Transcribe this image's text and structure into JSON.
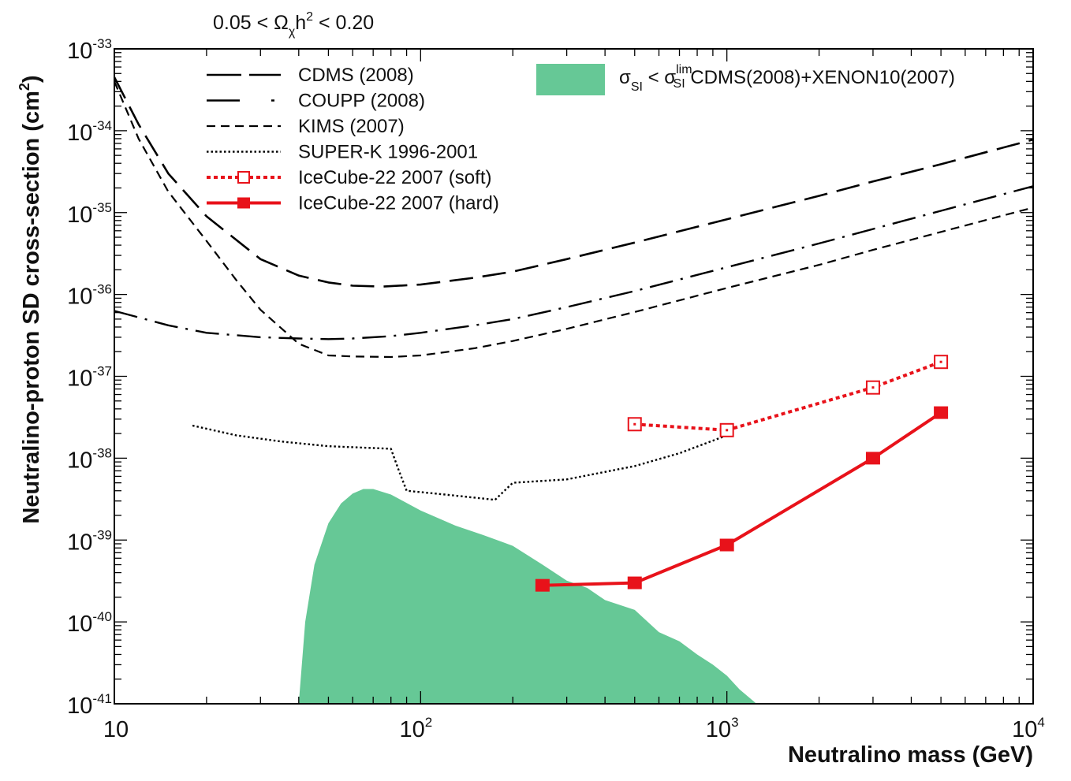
{
  "chart_data": {
    "type": "line",
    "annotation": "0.05 < Ω_χ h^2 < 0.20",
    "xlabel": "Neutralino mass (GeV)",
    "ylabel": "Neutralino-proton SD cross-section (cm^2)",
    "x_scale": "log",
    "y_scale": "log",
    "xlim": [
      10,
      10000
    ],
    "ylim": [
      1e-41,
      1e-33
    ],
    "x_ticks": [
      "10",
      "10^2",
      "10^3",
      "10^4"
    ],
    "y_ticks": [
      "10^-33",
      "10^-34",
      "10^-35",
      "10^-36",
      "10^-37",
      "10^-38",
      "10^-39",
      "10^-40",
      "10^-41"
    ],
    "grid": false,
    "legend_position": "top-left",
    "series": [
      {
        "name": "CDMS (2008)",
        "style": "long-dash",
        "color": "#000000",
        "points": [
          [
            10,
            4.5e-34
          ],
          [
            12,
            1.2e-34
          ],
          [
            15,
            3e-35
          ],
          [
            20,
            9e-36
          ],
          [
            30,
            2.7e-36
          ],
          [
            40,
            1.7e-36
          ],
          [
            50,
            1.4e-36
          ],
          [
            60,
            1.28e-36
          ],
          [
            75,
            1.25e-36
          ],
          [
            100,
            1.32e-36
          ],
          [
            150,
            1.6e-36
          ],
          [
            200,
            1.9e-36
          ],
          [
            300,
            2.7e-36
          ],
          [
            500,
            4.3e-36
          ],
          [
            1000,
            8.3e-36
          ],
          [
            2000,
            1.6e-35
          ],
          [
            3000,
            2.4e-35
          ],
          [
            5000,
            3.9e-35
          ],
          [
            10000,
            7.8e-35
          ]
        ]
      },
      {
        "name": "COUPP (2008)",
        "style": "dash-dot",
        "color": "#000000",
        "points": [
          [
            10,
            6.3e-37
          ],
          [
            15,
            4.2e-37
          ],
          [
            20,
            3.4e-37
          ],
          [
            30,
            3e-37
          ],
          [
            40,
            2.9e-37
          ],
          [
            50,
            2.85e-37
          ],
          [
            60,
            2.9e-37
          ],
          [
            80,
            3.1e-37
          ],
          [
            100,
            3.4e-37
          ],
          [
            150,
            4.2e-37
          ],
          [
            200,
            5e-37
          ],
          [
            300,
            7e-37
          ],
          [
            500,
            1.1e-36
          ],
          [
            1000,
            2.15e-36
          ],
          [
            2000,
            4.2e-36
          ],
          [
            3000,
            6.3e-36
          ],
          [
            5000,
            1.05e-35
          ],
          [
            10000,
            2.1e-35
          ]
        ]
      },
      {
        "name": "KIMS (2007)",
        "style": "short-dash",
        "color": "#000000",
        "points": [
          [
            10,
            4e-34
          ],
          [
            12,
            8e-35
          ],
          [
            15,
            1.8e-35
          ],
          [
            20,
            4.5e-36
          ],
          [
            25,
            1.5e-36
          ],
          [
            30,
            6.5e-37
          ],
          [
            40,
            2.5e-37
          ],
          [
            50,
            1.8e-37
          ],
          [
            60,
            1.75e-37
          ],
          [
            80,
            1.72e-37
          ],
          [
            100,
            1.8e-37
          ],
          [
            150,
            2.2e-37
          ],
          [
            200,
            2.7e-37
          ],
          [
            300,
            3.8e-37
          ],
          [
            500,
            6.1e-37
          ],
          [
            1000,
            1.2e-36
          ],
          [
            2000,
            2.3e-36
          ],
          [
            3000,
            3.5e-36
          ],
          [
            5000,
            5.8e-36
          ],
          [
            10000,
            1.15e-35
          ]
        ]
      },
      {
        "name": "SUPER-K 1996-2001",
        "style": "dotted",
        "color": "#000000",
        "points": [
          [
            18,
            2.5e-38
          ],
          [
            25,
            1.9e-38
          ],
          [
            35,
            1.6e-38
          ],
          [
            50,
            1.4e-38
          ],
          [
            70,
            1.33e-38
          ],
          [
            80,
            1.3e-38
          ],
          [
            85,
            7e-39
          ],
          [
            90,
            4e-39
          ],
          [
            120,
            3.6e-39
          ],
          [
            175,
            3.1e-39
          ],
          [
            200,
            5e-39
          ],
          [
            300,
            5.5e-39
          ],
          [
            500,
            8e-39
          ],
          [
            700,
            1.15e-38
          ],
          [
            1000,
            1.9e-38
          ]
        ]
      },
      {
        "name": "IceCube-22 2007 (soft)",
        "style": "dotted-marker",
        "color": "#e8121a",
        "points": [
          [
            500,
            2.6e-38
          ],
          [
            1000,
            2.2e-38
          ],
          [
            3000,
            7.3e-38
          ],
          [
            5000,
            1.5e-37
          ]
        ]
      },
      {
        "name": "IceCube-22 2007 (hard)",
        "style": "solid-marker",
        "color": "#e8121a",
        "points": [
          [
            250,
            2.8e-40
          ],
          [
            500,
            3e-40
          ],
          [
            1000,
            8.7e-40
          ],
          [
            3000,
            1e-38
          ],
          [
            5000,
            3.6e-38
          ]
        ]
      }
    ],
    "region": {
      "name": "σ_SI < σ_SI^lim CDMS(2008)+XENON10(2007)",
      "color": "#66c896",
      "upper_boundary": [
        [
          40,
          1e-41
        ],
        [
          42,
          1e-40
        ],
        [
          45,
          5e-40
        ],
        [
          50,
          1.6e-39
        ],
        [
          55,
          2.8e-39
        ],
        [
          60,
          3.7e-39
        ],
        [
          65,
          4.2e-39
        ],
        [
          70,
          4.2e-39
        ],
        [
          80,
          3.6e-39
        ],
        [
          100,
          2.3e-39
        ],
        [
          130,
          1.5e-39
        ],
        [
          160,
          1.15e-39
        ],
        [
          200,
          8.5e-40
        ],
        [
          250,
          5e-40
        ],
        [
          300,
          3.2e-40
        ],
        [
          350,
          2.6e-40
        ],
        [
          400,
          1.85e-40
        ],
        [
          500,
          1.4e-40
        ],
        [
          600,
          7.5e-41
        ],
        [
          700,
          5.8e-41
        ],
        [
          800,
          4e-41
        ],
        [
          900,
          3e-41
        ],
        [
          1000,
          2.2e-41
        ],
        [
          1100,
          1.5e-41
        ],
        [
          1250,
          1e-41
        ]
      ]
    }
  }
}
